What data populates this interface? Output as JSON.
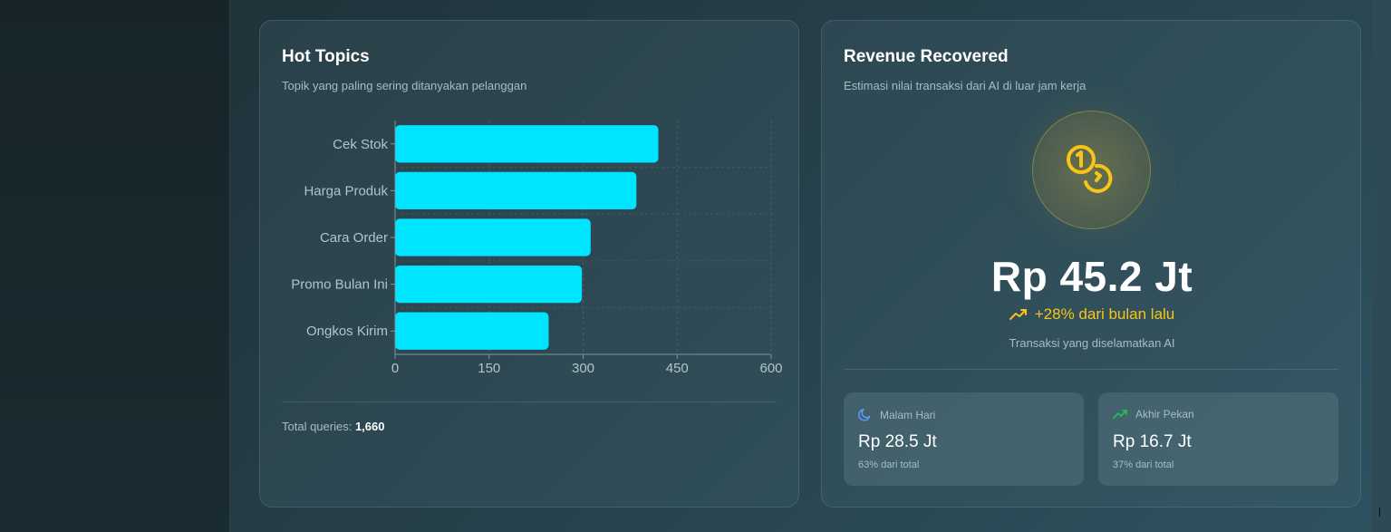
{
  "hot_topics": {
    "title": "Hot Topics",
    "subtitle": "Topik yang paling sering ditanyakan pelanggan",
    "total_label": "Total queries:",
    "total_value": "1,660"
  },
  "chart_data": {
    "type": "bar",
    "orientation": "horizontal",
    "categories": [
      "Cek Stok",
      "Harga Produk",
      "Cara Order",
      "Promo Bulan Ini",
      "Ongkos Kirim"
    ],
    "values": [
      420,
      385,
      312,
      298,
      245
    ],
    "xticks": [
      "0",
      "150",
      "300",
      "450",
      "600"
    ],
    "xlim": [
      0,
      600
    ],
    "grid": true,
    "bar_color": "#00e5ff"
  },
  "revenue": {
    "title": "Revenue Recovered",
    "subtitle": "Estimasi nilai transaksi dari AI di luar jam kerja",
    "icon": "coins-icon",
    "value": "Rp 45.2 Jt",
    "growth": "+28% dari bulan lalu",
    "growth_icon": "trending-up-icon",
    "caption": "Transaksi yang diselamatkan AI",
    "accent": "#f5c518",
    "breakdown": [
      {
        "label": "Malam Hari",
        "icon": "moon-icon",
        "value": "Rp 28.5 Jt",
        "share": "63% dari total",
        "color": "#5b9cf5"
      },
      {
        "label": "Akhir Pekan",
        "icon": "trending-up-icon",
        "value": "Rp 16.7 Jt",
        "share": "37% dari total",
        "color": "#22c55e"
      }
    ]
  }
}
